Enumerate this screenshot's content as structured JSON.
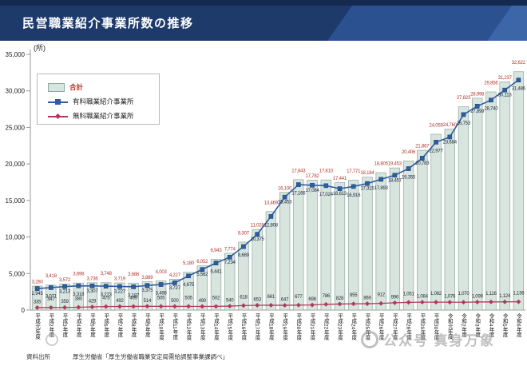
{
  "title": "民営職業紹介事業所数の推移",
  "y_unit": "(所)",
  "legend": {
    "total_label": "合計",
    "paid_label": "有料職業紹介事業所",
    "free_label": "無料職業紹介事業所"
  },
  "source": {
    "label": "資料出所",
    "text": "厚生労働省「厚生労働省職業安定局需給調整事業課調べ」"
  },
  "watermark_text": "公众号 真身万象",
  "colors": {
    "title_bar": "#1d3a6b",
    "title_bar_accent1": "#2c5191",
    "title_bar_accent2": "#3d66a8",
    "bar_fill": "#d7e5de",
    "bar_border": "#8fa8a0",
    "paid_line": "#2e5c9e",
    "free_line": "#b03a5f",
    "total_label_color": "#b2372c",
    "paid_label_color": "#1a2438",
    "free_label_color": "#2a2a36"
  },
  "chart_data": {
    "type": "bar",
    "note": "combo: bars = total, two overlaid lines",
    "title": "民営職業紹介事業所数の推移",
    "ylabel": "(所)",
    "ylim": [
      0,
      35000
    ],
    "yticks": [
      0,
      5000,
      10000,
      15000,
      20000,
      25000,
      30000,
      35000
    ],
    "grid": false,
    "legend_position": "upper-left",
    "categories": [
      "平成元年度",
      "平成2年度",
      "平成3年度",
      "平成4年度",
      "平成5年度",
      "平成6年度",
      "平成7年度",
      "平成8年度",
      "平成9年度",
      "平成10年度",
      "平成11年度",
      "平成12年度",
      "平成13年度",
      "平成14年度",
      "平成15年度",
      "平成16年度",
      "平成17年度",
      "平成18年度",
      "平成19年度",
      "平成20年度",
      "平成21年度",
      "平成22年度",
      "平成23年度",
      "平成24年度",
      "平成25年度",
      "平成26年度",
      "平成27年度",
      "平成28年度",
      "平成29年度",
      "平成30年度",
      "令和元年度",
      "令和2年度",
      "令和3年度",
      "令和4年度",
      "令和5年度",
      "令和6年度"
    ],
    "series": [
      {
        "name": "合計",
        "render": "bar",
        "values": [
          3280,
          3418,
          3572,
          3698,
          3736,
          3748,
          3719,
          3686,
          3889,
          4003,
          4227,
          5180,
          6052,
          6943,
          7774,
          9307,
          11028,
          13469,
          16100,
          17843,
          17782,
          17810,
          17441,
          17771,
          18184,
          18805,
          19453,
          20406,
          21867,
          24059,
          24760,
          27823,
          28998,
          29856,
          31237,
          32622
        ]
      },
      {
        "name": "有料職業紹介事業所",
        "render": "line-square",
        "values": [
          2945,
          3071,
          3213,
          3318,
          3307,
          3273,
          3227,
          3187,
          3375,
          3498,
          3727,
          4675,
          5562,
          6441,
          7234,
          8689,
          10375,
          12808,
          15453,
          17166,
          17084,
          17024,
          16613,
          16916,
          17315,
          17893,
          18457,
          19355,
          20783,
          22977,
          23684,
          26753,
          27899,
          28740,
          30113,
          31486
        ]
      },
      {
        "name": "無料職業紹介事業所",
        "render": "line-diamond",
        "values": [
          335,
          347,
          359,
          380,
          429,
          475,
          492,
          499,
          514,
          505,
          500,
          505,
          490,
          502,
          540,
          618,
          653,
          661,
          647,
          677,
          698,
          786,
          828,
          855,
          869,
          912,
          996,
          1051,
          1084,
          1082,
          1076,
          1070,
          1099,
          1116,
          1124,
          1136
        ]
      }
    ]
  }
}
